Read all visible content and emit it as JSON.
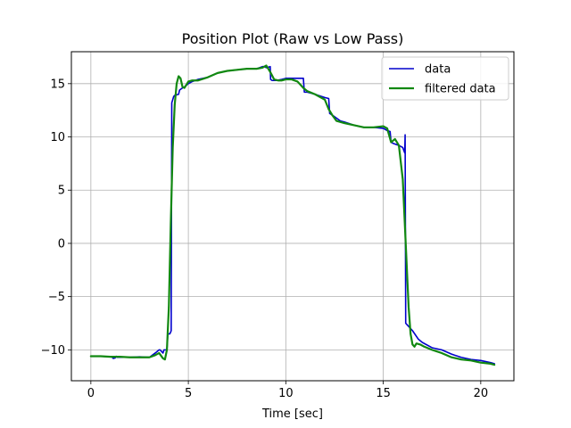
{
  "chart_data": {
    "type": "line",
    "title": "Position Plot (Raw vs Low Pass)",
    "xlabel": "Time [sec]",
    "ylabel": "",
    "xlim": [
      -1,
      21.7
    ],
    "ylim": [
      -12.9,
      18.0
    ],
    "grid": true,
    "legend_position": "top-right",
    "xticks": [
      0,
      5,
      10,
      15,
      20
    ],
    "xtick_labels": [
      "0",
      "5",
      "10",
      "15",
      "20"
    ],
    "yticks": [
      -10,
      -5,
      0,
      5,
      10,
      15
    ],
    "ytick_labels": [
      "−10",
      "−5",
      "0",
      "5",
      "10",
      "15"
    ],
    "series": [
      {
        "name": "data",
        "color": "#0000cc",
        "x": [
          0,
          0.5,
          1.0,
          1.1,
          1.15,
          1.25,
          1.3,
          1.35,
          1.5,
          2.0,
          2.5,
          3.0,
          3.3,
          3.5,
          3.55,
          3.7,
          3.75,
          3.9,
          3.95,
          4.05,
          4.1,
          4.12,
          4.15,
          4.2,
          4.25,
          4.3,
          4.5,
          4.55,
          4.7,
          4.8,
          5.0,
          5.2,
          5.5,
          6.0,
          6.5,
          7.0,
          7.5,
          8.0,
          8.5,
          8.8,
          8.9,
          9.0,
          9.2,
          9.22,
          9.3,
          9.5,
          9.8,
          10.0,
          10.5,
          10.9,
          10.95,
          11.1,
          11.5,
          12.0,
          12.2,
          12.25,
          12.5,
          12.8,
          13.0,
          13.5,
          14.0,
          14.5,
          15.0,
          15.2,
          15.35,
          15.4,
          15.5,
          15.8,
          16.0,
          16.1,
          16.12,
          16.15,
          16.2,
          16.3,
          16.5,
          16.8,
          17.0,
          17.5,
          18.0,
          18.5,
          19.0,
          19.5,
          20.0,
          20.5,
          20.7
        ],
        "y": [
          -10.6,
          -10.6,
          -10.65,
          -10.7,
          -10.8,
          -10.75,
          -10.6,
          -10.7,
          -10.7,
          -10.7,
          -10.65,
          -10.7,
          -10.3,
          -10.0,
          -10.0,
          -10.3,
          -10.0,
          -10.0,
          -8.5,
          -8.5,
          -8.3,
          -8.2,
          13.2,
          13.5,
          13.8,
          13.9,
          14.0,
          14.4,
          14.6,
          14.7,
          15.0,
          15.2,
          15.4,
          15.6,
          16.0,
          16.2,
          16.3,
          16.4,
          16.4,
          16.6,
          16.6,
          16.5,
          16.6,
          15.4,
          15.3,
          15.3,
          15.4,
          15.5,
          15.5,
          15.5,
          14.2,
          14.2,
          14.0,
          13.7,
          13.6,
          12.2,
          11.9,
          11.5,
          11.4,
          11.1,
          10.9,
          10.9,
          10.8,
          10.6,
          10.5,
          9.5,
          9.4,
          9.2,
          9.0,
          8.5,
          10.2,
          -7.5,
          -7.6,
          -7.8,
          -8.2,
          -9.0,
          -9.3,
          -9.8,
          -10.0,
          -10.4,
          -10.7,
          -10.9,
          -11.0,
          -11.2,
          -11.3
        ]
      },
      {
        "name": "filtered data",
        "color": "#118811",
        "x": [
          0,
          0.5,
          1.0,
          1.5,
          2.0,
          2.5,
          3.0,
          3.3,
          3.5,
          3.7,
          3.8,
          3.9,
          4.0,
          4.1,
          4.2,
          4.3,
          4.4,
          4.5,
          4.6,
          4.7,
          4.8,
          4.9,
          5.0,
          5.2,
          5.5,
          6.0,
          6.5,
          7.0,
          7.5,
          8.0,
          8.5,
          8.8,
          9.0,
          9.2,
          9.4,
          9.6,
          9.8,
          10.0,
          10.3,
          10.6,
          10.9,
          11.1,
          11.5,
          12.0,
          12.2,
          12.4,
          12.6,
          12.8,
          13.0,
          13.5,
          14.0,
          14.5,
          15.0,
          15.2,
          15.4,
          15.6,
          15.8,
          16.0,
          16.1,
          16.2,
          16.3,
          16.4,
          16.5,
          16.6,
          16.7,
          16.9,
          17.1,
          17.5,
          18.0,
          18.5,
          19.0,
          19.5,
          20.0,
          20.5,
          20.7
        ],
        "y": [
          -10.6,
          -10.6,
          -10.65,
          -10.65,
          -10.7,
          -10.7,
          -10.7,
          -10.5,
          -10.3,
          -10.8,
          -10.9,
          -10.0,
          -6.0,
          2.0,
          9.0,
          13.0,
          15.0,
          15.7,
          15.5,
          14.7,
          14.6,
          14.9,
          15.2,
          15.3,
          15.3,
          15.6,
          16.0,
          16.2,
          16.3,
          16.4,
          16.4,
          16.5,
          16.7,
          16.1,
          15.4,
          15.3,
          15.3,
          15.4,
          15.4,
          15.2,
          14.6,
          14.3,
          14.0,
          13.5,
          12.6,
          12.0,
          11.5,
          11.4,
          11.3,
          11.1,
          10.9,
          10.9,
          11.0,
          10.8,
          9.5,
          9.8,
          9.2,
          6.0,
          2.0,
          -2.0,
          -6.0,
          -8.5,
          -9.5,
          -9.7,
          -9.4,
          -9.5,
          -9.7,
          -10.0,
          -10.3,
          -10.7,
          -10.9,
          -11.0,
          -11.2,
          -11.3,
          -11.4
        ]
      }
    ]
  }
}
